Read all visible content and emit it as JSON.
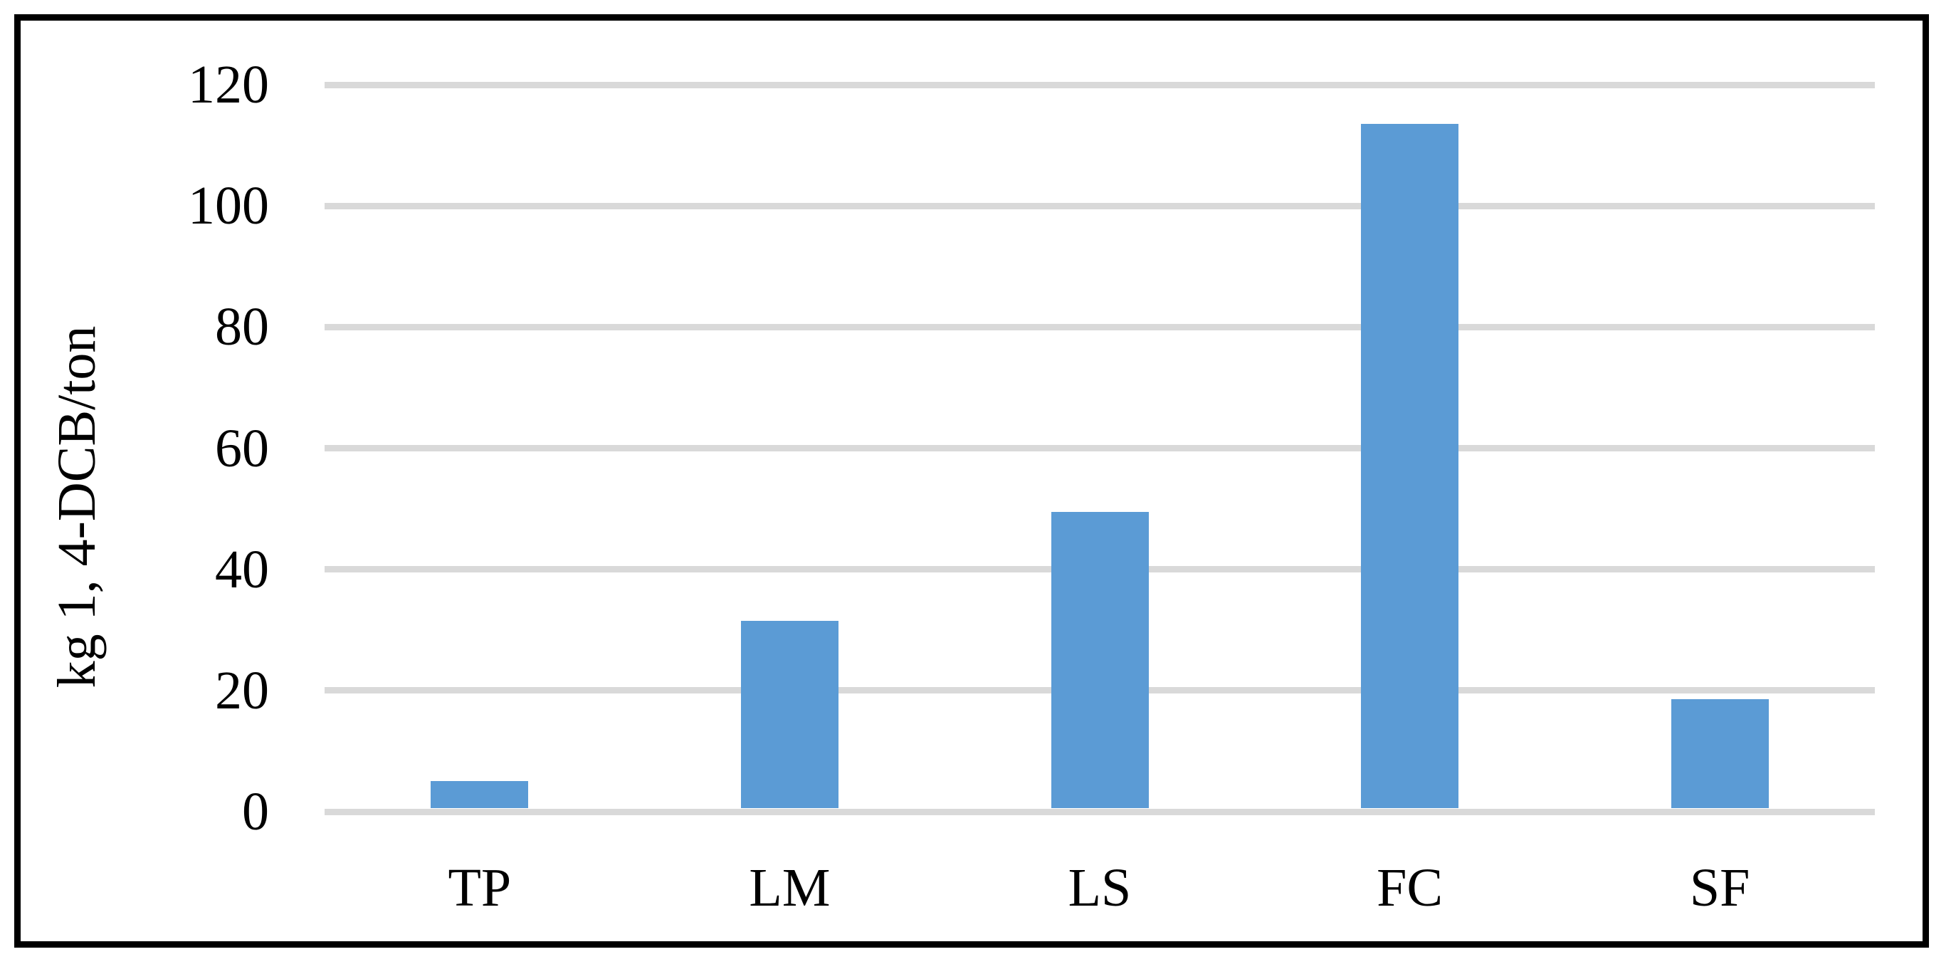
{
  "chart_data": {
    "type": "bar",
    "title": "",
    "categories": [
      "TP",
      "LM",
      "LS",
      "FC",
      "SF"
    ],
    "values": [
      4.5,
      31,
      49,
      113,
      18
    ],
    "series_count": 1,
    "xlabel": "",
    "ylabel": "kg 1, 4-DCB/ton",
    "ylim": [
      0,
      120
    ],
    "yticks": [
      0,
      20,
      40,
      60,
      80,
      100,
      120
    ],
    "grid": "horizontal",
    "legend_position": "none",
    "colors": {
      "bar": "#5B9BD5",
      "gridline": "#D9D9D9",
      "frame_border": "#000000",
      "text": "#000000",
      "background": "#FFFFFF"
    }
  }
}
